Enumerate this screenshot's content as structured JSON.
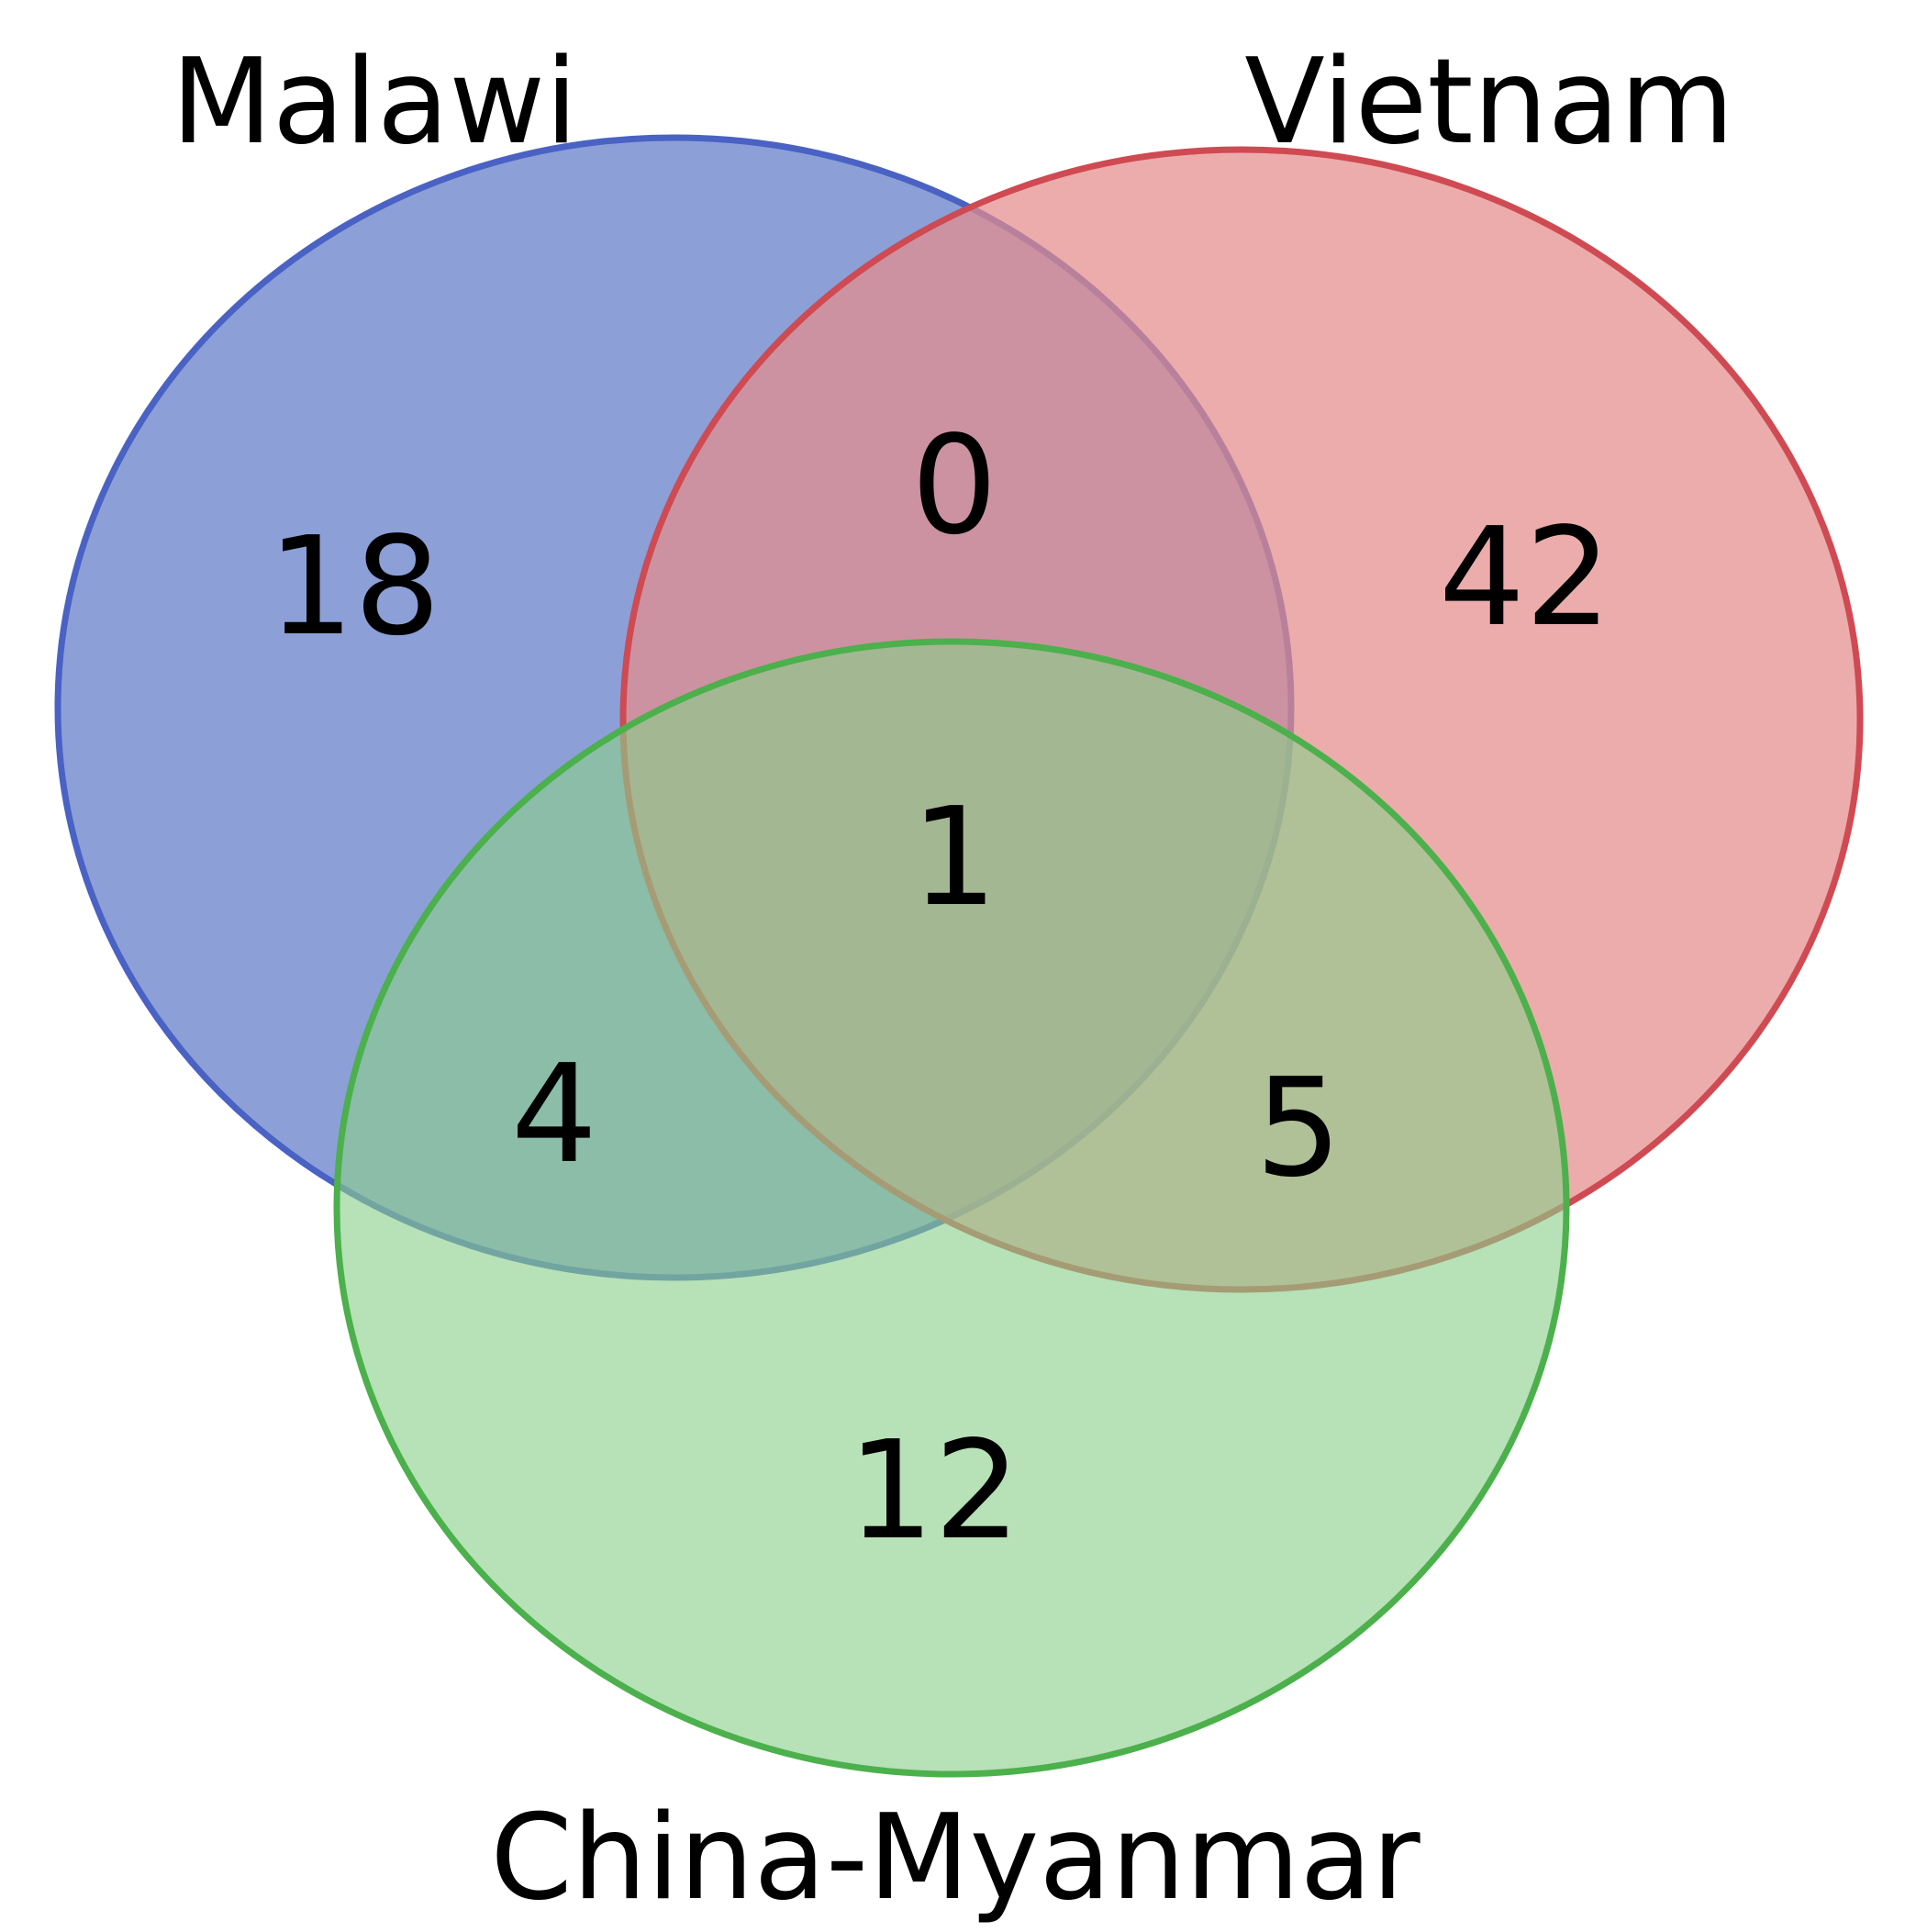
{
  "diagram": {
    "type": "venn-3",
    "sets": [
      {
        "id": "malawi",
        "name": "Malawi",
        "fill": "#8a9ed6",
        "stroke": "#4a62c4"
      },
      {
        "id": "vietnam",
        "name": "Vietnam",
        "fill": "#e48c8c",
        "stroke": "#cf4a52"
      },
      {
        "id": "china_myanmar",
        "name": "China-Myanmar",
        "fill": "#8bce8a",
        "stroke": "#4cb04c"
      }
    ],
    "regions": {
      "malawi_only": "18",
      "vietnam_only": "42",
      "china_myanmar_only": "12",
      "malawi_vietnam": "0",
      "malawi_china_myanmar": "4",
      "vietnam_china_myanmar": "5",
      "all_three": "1"
    }
  }
}
